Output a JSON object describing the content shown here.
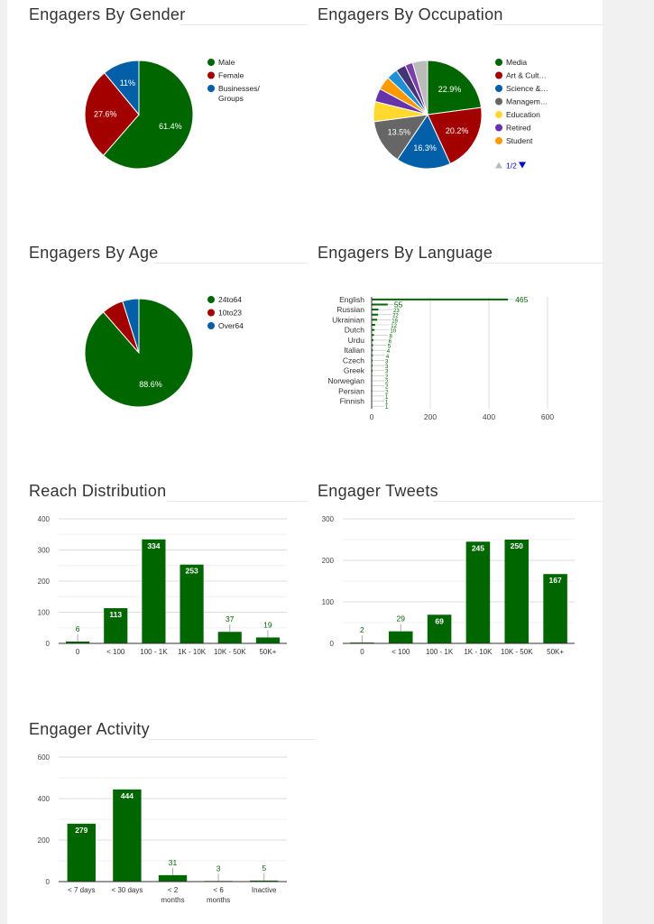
{
  "colors": {
    "green": "#006600",
    "red": "#a30000",
    "blue": "#0360a8",
    "gray": "#666666",
    "yellow": "#ffd92e",
    "purple": "#6633aa",
    "orange": "#ff9900",
    "lightblue": "#1f8fd6",
    "darkpurple": "#443377",
    "violet": "#7a3fa8",
    "silver": "#bbbbbb"
  },
  "chart_data": [
    {
      "id": "gender",
      "type": "pie",
      "title": "Engagers By Gender",
      "legend_position": "right",
      "slices": [
        {
          "name": "Male",
          "value": 61.4,
          "label": "61.4%",
          "color": "#006600"
        },
        {
          "name": "Female",
          "value": 27.6,
          "label": "27.6%",
          "color": "#a30000"
        },
        {
          "name": "Businesses/ Groups",
          "value": 11,
          "label": "11%",
          "color": "#0360a8"
        }
      ]
    },
    {
      "id": "occupation",
      "type": "pie",
      "title": "Engagers By Occupation",
      "legend_position": "right",
      "legend_page": "1/2",
      "slices": [
        {
          "name": "Media",
          "value": 22.9,
          "label": "22.9%",
          "color": "#006600"
        },
        {
          "name": "Art & Cult…",
          "value": 20.2,
          "label": "20.2%",
          "color": "#a30000"
        },
        {
          "name": "Science &…",
          "value": 16.3,
          "label": "16.3%",
          "color": "#0360a8"
        },
        {
          "name": "Managem…",
          "value": 13.5,
          "label": "13.5%",
          "color": "#666666"
        },
        {
          "name": "Education",
          "value": 6,
          "label": "",
          "color": "#ffd92e"
        },
        {
          "name": "Retired",
          "value": 4,
          "label": "",
          "color": "#6633aa"
        },
        {
          "name": "Student",
          "value": 4,
          "label": "",
          "color": "#ff9900"
        },
        {
          "value": 3.3,
          "label": "",
          "color": "#1f8fd6"
        },
        {
          "value": 3,
          "label": "",
          "color": "#443377"
        },
        {
          "value": 2.3,
          "label": "",
          "color": "#7a3fa8"
        },
        {
          "value": 4.5,
          "label": "",
          "color": "#bbbbbb"
        }
      ]
    },
    {
      "id": "age",
      "type": "pie",
      "title": "Engagers By Age",
      "legend_position": "right",
      "slices": [
        {
          "name": "24to64",
          "value": 88.6,
          "label": "88.6%",
          "color": "#006600"
        },
        {
          "name": "10to23",
          "value": 6.5,
          "label": "",
          "color": "#a30000"
        },
        {
          "name": "Over64",
          "value": 4.9,
          "label": "",
          "color": "#0360a8"
        }
      ]
    },
    {
      "id": "language",
      "type": "bar",
      "orientation": "horizontal",
      "title": "Engagers By Language",
      "xlim": [
        0,
        600
      ],
      "xticks": [
        0,
        200,
        400,
        600
      ],
      "categories": [
        "English",
        "",
        "Russian",
        "",
        "Ukrainian",
        "",
        "Dutch",
        "",
        "Urdu",
        "",
        "Italian",
        "",
        "Czech",
        "",
        "Greek",
        "",
        "Norwegian",
        "",
        "Persian",
        "",
        "Finnish",
        ""
      ],
      "values": [
        465,
        55,
        23,
        22,
        19,
        12,
        10,
        8,
        6,
        5,
        4,
        4,
        3,
        3,
        3,
        2,
        2,
        2,
        2,
        1,
        1,
        1
      ]
    },
    {
      "id": "reach",
      "type": "bar",
      "title": "Reach Distribution",
      "ylim": [
        0,
        400
      ],
      "yticks": [
        0,
        100,
        200,
        300,
        400
      ],
      "categories": [
        "0",
        "< 100",
        "100 - 1K",
        "1K - 10K",
        "10K - 50K",
        "50K+"
      ],
      "values": [
        6,
        113,
        334,
        253,
        37,
        19
      ]
    },
    {
      "id": "tweets",
      "type": "bar",
      "title": "Engager Tweets",
      "ylim": [
        0,
        300
      ],
      "yticks": [
        0,
        100,
        200,
        300
      ],
      "categories": [
        "0",
        "< 100",
        "100 - 1K",
        "1K - 10K",
        "10K - 50K",
        "50K+"
      ],
      "values": [
        2,
        29,
        69,
        245,
        250,
        167
      ]
    },
    {
      "id": "activity",
      "type": "bar",
      "title": "Engager Activity",
      "ylim": [
        0,
        600
      ],
      "yticks": [
        0,
        200,
        400,
        600
      ],
      "categories": [
        "< 7 days",
        "< 30 days",
        "< 2 months",
        "< 6 months",
        "Inactive"
      ],
      "values": [
        279,
        444,
        31,
        3,
        5
      ]
    }
  ]
}
